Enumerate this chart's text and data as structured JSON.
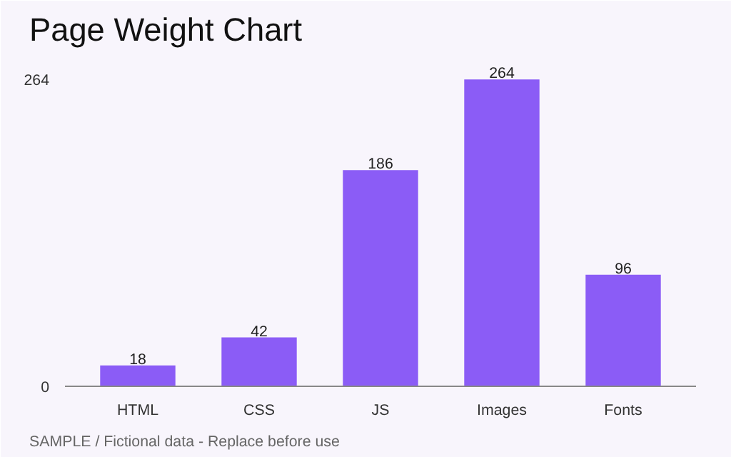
{
  "chart_data": {
    "type": "bar",
    "title": "Page Weight Chart",
    "categories": [
      "HTML",
      "CSS",
      "JS",
      "Images",
      "Fonts"
    ],
    "values": [
      18,
      42,
      186,
      264,
      96
    ],
    "color": "#8b5cf6",
    "ylim": [
      0,
      285
    ],
    "yticks": [
      0,
      264
    ],
    "grid": false,
    "data_labels": true,
    "annotations": [
      "SAMPLE / Fictional data - Replace before use"
    ]
  }
}
